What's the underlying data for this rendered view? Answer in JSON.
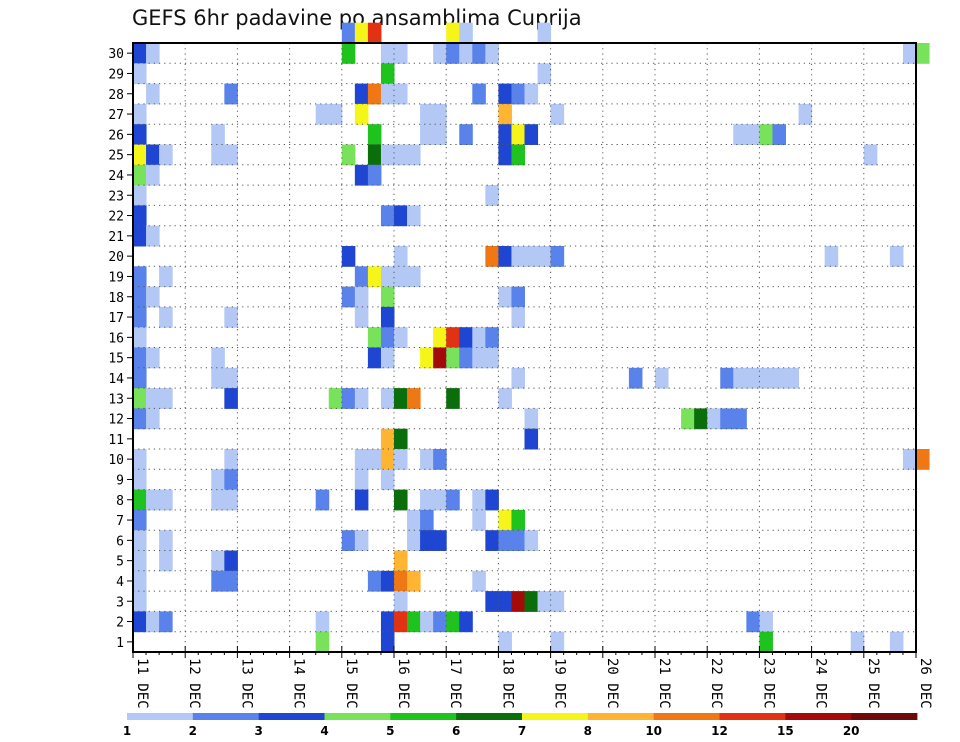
{
  "chart_data": {
    "type": "heatmap",
    "title": "GEFS 6hr padavine po ansamblima Cuprija",
    "xlabel": "",
    "ylabel": "",
    "x_tick_labels": [
      "11 DEC",
      "12 DEC",
      "13 DEC",
      "14 DEC",
      "15 DEC",
      "16 DEC",
      "17 DEC",
      "18 DEC",
      "19 DEC",
      "20 DEC",
      "21 DEC",
      "22 DEC",
      "23 DEC",
      "24 DEC",
      "25 DEC",
      "26 DEC"
    ],
    "y_tick_labels": [
      "1",
      "2",
      "3",
      "4",
      "5",
      "6",
      "7",
      "8",
      "9",
      "10",
      "11",
      "12",
      "13",
      "14",
      "15",
      "16",
      "17",
      "18",
      "19",
      "20",
      "21",
      "22",
      "23",
      "24",
      "25",
      "26",
      "27",
      "28",
      "29",
      "30"
    ],
    "xlim": [
      0,
      60
    ],
    "ylim": [
      0,
      30
    ],
    "grid": true,
    "colorbar": {
      "boundary_labels": [
        "1",
        "2",
        "3",
        "4",
        "5",
        "6",
        "7",
        "8",
        "10",
        "12",
        "15",
        "20"
      ],
      "colors": [
        "#b4c8f5",
        "#5a82eb",
        "#1e46d2",
        "#78e35a",
        "#1ec31e",
        "#0a6e0a",
        "#f5f519",
        "#ffb432",
        "#f07814",
        "#e13214",
        "#a50a0a",
        "#6e0a0a"
      ]
    },
    "member_cells": [
      [
        30,
        [
          [
            16,
            2
          ],
          [
            17,
            7
          ],
          [
            18,
            10
          ],
          [
            24,
            7
          ],
          [
            25,
            1
          ],
          [
            31,
            1
          ]
        ]
      ],
      [
        29,
        [
          [
            0,
            3
          ],
          [
            1,
            1
          ],
          [
            16,
            5
          ],
          [
            19,
            1
          ],
          [
            20,
            1
          ],
          [
            23,
            1
          ],
          [
            24,
            2
          ],
          [
            25,
            1
          ],
          [
            26,
            2
          ],
          [
            27,
            1
          ],
          [
            59,
            1
          ],
          [
            60,
            4
          ]
        ]
      ],
      [
        28,
        [
          [
            0,
            1
          ],
          [
            19,
            5
          ],
          [
            31,
            1
          ]
        ]
      ],
      [
        27,
        [
          [
            1,
            1
          ],
          [
            7,
            2
          ],
          [
            17,
            3
          ],
          [
            18,
            9
          ],
          [
            19,
            1
          ],
          [
            20,
            1
          ],
          [
            26,
            2
          ],
          [
            28,
            3
          ],
          [
            29,
            2
          ],
          [
            30,
            1
          ]
        ]
      ],
      [
        26,
        [
          [
            0,
            1
          ],
          [
            14,
            1
          ],
          [
            15,
            1
          ],
          [
            17,
            7
          ],
          [
            22,
            1
          ],
          [
            23,
            1
          ],
          [
            28,
            8
          ],
          [
            32,
            1
          ],
          [
            51,
            1
          ]
        ]
      ],
      [
        25,
        [
          [
            0,
            3
          ],
          [
            6,
            1
          ],
          [
            18,
            5
          ],
          [
            22,
            1
          ],
          [
            23,
            1
          ],
          [
            25,
            2
          ],
          [
            28,
            3
          ],
          [
            29,
            7
          ],
          [
            30,
            3
          ],
          [
            46,
            1
          ],
          [
            47,
            1
          ],
          [
            48,
            4
          ],
          [
            49,
            2
          ]
        ]
      ],
      [
        24,
        [
          [
            0,
            7
          ],
          [
            1,
            3
          ],
          [
            2,
            1
          ],
          [
            6,
            1
          ],
          [
            7,
            1
          ],
          [
            16,
            4
          ],
          [
            18,
            6
          ],
          [
            19,
            1
          ],
          [
            20,
            1
          ],
          [
            21,
            1
          ],
          [
            28,
            3
          ],
          [
            29,
            5
          ],
          [
            56,
            1
          ]
        ]
      ],
      [
        23,
        [
          [
            0,
            4
          ],
          [
            1,
            1
          ],
          [
            17,
            3
          ],
          [
            18,
            2
          ]
        ]
      ],
      [
        22,
        [
          [
            0,
            1
          ],
          [
            27,
            1
          ]
        ]
      ],
      [
        21,
        [
          [
            0,
            3
          ],
          [
            19,
            2
          ],
          [
            20,
            3
          ],
          [
            21,
            1
          ]
        ]
      ],
      [
        20,
        [
          [
            0,
            3
          ],
          [
            1,
            1
          ]
        ]
      ],
      [
        19,
        [
          [
            16,
            3
          ],
          [
            20,
            1
          ],
          [
            27,
            9
          ],
          [
            28,
            3
          ],
          [
            29,
            1
          ],
          [
            30,
            1
          ],
          [
            31,
            1
          ],
          [
            32,
            2
          ],
          [
            53,
            1
          ],
          [
            58,
            1
          ]
        ]
      ],
      [
        18,
        [
          [
            0,
            2
          ],
          [
            2,
            1
          ],
          [
            17,
            2
          ],
          [
            18,
            7
          ],
          [
            19,
            1
          ],
          [
            20,
            1
          ],
          [
            21,
            1
          ]
        ]
      ],
      [
        17,
        [
          [
            0,
            2
          ],
          [
            1,
            1
          ],
          [
            16,
            2
          ],
          [
            17,
            1
          ],
          [
            19,
            4
          ],
          [
            28,
            1
          ],
          [
            29,
            2
          ]
        ]
      ],
      [
        16,
        [
          [
            0,
            2
          ],
          [
            2,
            1
          ],
          [
            7,
            1
          ],
          [
            17,
            1
          ],
          [
            19,
            3
          ],
          [
            29,
            1
          ]
        ]
      ],
      [
        15,
        [
          [
            0,
            1
          ],
          [
            18,
            4
          ],
          [
            19,
            2
          ],
          [
            20,
            1
          ],
          [
            23,
            7
          ],
          [
            24,
            10
          ],
          [
            25,
            3
          ],
          [
            26,
            1
          ],
          [
            27,
            2
          ]
        ]
      ],
      [
        14,
        [
          [
            0,
            2
          ],
          [
            1,
            1
          ],
          [
            6,
            1
          ],
          [
            18,
            3
          ],
          [
            19,
            1
          ],
          [
            22,
            7
          ],
          [
            23,
            11
          ],
          [
            24,
            4
          ],
          [
            25,
            2
          ],
          [
            26,
            1
          ],
          [
            27,
            1
          ]
        ]
      ],
      [
        13,
        [
          [
            0,
            2
          ],
          [
            6,
            1
          ],
          [
            7,
            1
          ],
          [
            29,
            1
          ],
          [
            38,
            2
          ],
          [
            40,
            1
          ],
          [
            45,
            2
          ],
          [
            46,
            1
          ],
          [
            47,
            1
          ],
          [
            48,
            1
          ],
          [
            49,
            1
          ],
          [
            50,
            1
          ]
        ]
      ],
      [
        12,
        [
          [
            0,
            4
          ],
          [
            1,
            1
          ],
          [
            2,
            1
          ],
          [
            7,
            3
          ],
          [
            15,
            4
          ],
          [
            16,
            2
          ],
          [
            17,
            1
          ],
          [
            19,
            1
          ],
          [
            20,
            6
          ],
          [
            21,
            9
          ],
          [
            24,
            6
          ],
          [
            28,
            1
          ]
        ]
      ],
      [
        11,
        [
          [
            0,
            2
          ],
          [
            1,
            1
          ],
          [
            30,
            1
          ],
          [
            42,
            4
          ],
          [
            43,
            6
          ],
          [
            44,
            1
          ],
          [
            45,
            2
          ],
          [
            46,
            2
          ]
        ]
      ],
      [
        10,
        [
          [
            19,
            8
          ],
          [
            20,
            6
          ],
          [
            30,
            3
          ]
        ]
      ],
      [
        9,
        [
          [
            0,
            1
          ],
          [
            7,
            1
          ],
          [
            17,
            1
          ],
          [
            18,
            1
          ],
          [
            19,
            8
          ],
          [
            20,
            1
          ],
          [
            22,
            1
          ],
          [
            23,
            2
          ],
          [
            59,
            1
          ],
          [
            60,
            9
          ]
        ]
      ],
      [
        8,
        [
          [
            0,
            1
          ],
          [
            6,
            1
          ],
          [
            7,
            2
          ],
          [
            17,
            1
          ],
          [
            19,
            1
          ]
        ]
      ],
      [
        7,
        [
          [
            0,
            5
          ],
          [
            1,
            1
          ],
          [
            2,
            1
          ],
          [
            6,
            1
          ],
          [
            7,
            1
          ],
          [
            14,
            2
          ],
          [
            17,
            3
          ],
          [
            20,
            6
          ],
          [
            22,
            1
          ],
          [
            23,
            1
          ],
          [
            24,
            2
          ],
          [
            26,
            1
          ],
          [
            27,
            3
          ]
        ]
      ],
      [
        6,
        [
          [
            0,
            2
          ],
          [
            21,
            1
          ],
          [
            22,
            2
          ],
          [
            26,
            1
          ],
          [
            28,
            7
          ],
          [
            29,
            5
          ]
        ]
      ],
      [
        5,
        [
          [
            0,
            1
          ],
          [
            2,
            1
          ],
          [
            16,
            2
          ],
          [
            17,
            1
          ],
          [
            21,
            1
          ],
          [
            22,
            3
          ],
          [
            23,
            3
          ],
          [
            27,
            3
          ],
          [
            28,
            2
          ],
          [
            29,
            2
          ],
          [
            30,
            1
          ]
        ]
      ],
      [
        4,
        [
          [
            0,
            1
          ],
          [
            2,
            1
          ],
          [
            6,
            1
          ],
          [
            7,
            3
          ],
          [
            20,
            8
          ]
        ]
      ],
      [
        3,
        [
          [
            0,
            1
          ],
          [
            6,
            2
          ],
          [
            7,
            2
          ],
          [
            18,
            2
          ],
          [
            19,
            3
          ],
          [
            20,
            9
          ],
          [
            21,
            8
          ],
          [
            26,
            1
          ]
        ]
      ],
      [
        2,
        [
          [
            0,
            4
          ],
          [
            0,
            1
          ],
          [
            20,
            1
          ],
          [
            27,
            3
          ],
          [
            28,
            3
          ],
          [
            29,
            11
          ],
          [
            30,
            6
          ],
          [
            31,
            1
          ],
          [
            32,
            1
          ]
        ]
      ],
      [
        1,
        [
          [
            0,
            3
          ],
          [
            1,
            1
          ],
          [
            2,
            2
          ],
          [
            14,
            1
          ],
          [
            19,
            3
          ],
          [
            20,
            10
          ],
          [
            21,
            5
          ],
          [
            22,
            1
          ],
          [
            23,
            2
          ],
          [
            24,
            5
          ],
          [
            25,
            3
          ],
          [
            47,
            2
          ],
          [
            48,
            1
          ]
        ]
      ],
      [
        0,
        [
          [
            14,
            4
          ],
          [
            19,
            3
          ],
          [
            28,
            1
          ],
          [
            32,
            1
          ],
          [
            48,
            5
          ],
          [
            55,
            1
          ],
          [
            58,
            1
          ]
        ]
      ]
    ]
  }
}
